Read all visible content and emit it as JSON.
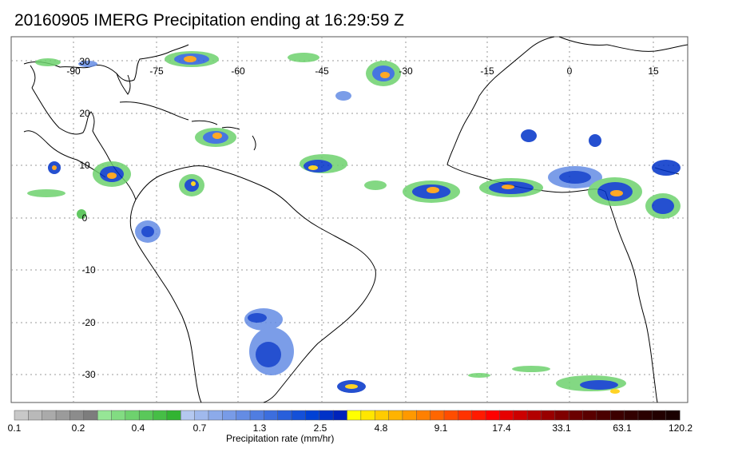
{
  "title": "20160905 IMERG Precipitation ending at 16:29:59 Z",
  "map": {
    "lon_labels": [
      "-90",
      "-75",
      "-60",
      "-45",
      "-30",
      "-15",
      "0",
      "15"
    ],
    "lat_labels": [
      "30",
      "20",
      "10",
      "0",
      "-10",
      "-20",
      "-30"
    ]
  },
  "colorbar": {
    "title": "Precipitation rate (mm/hr)",
    "tick_labels": [
      "0.1",
      "0.2",
      "0.4",
      "0.7",
      "1.3",
      "2.5",
      "4.8",
      "9.1",
      "17.4",
      "33.1",
      "63.1",
      "120.2"
    ],
    "colors": [
      "#c8c8c8",
      "#b9b9b9",
      "#aaaaaa",
      "#9b9b9b",
      "#8c8c8c",
      "#7d7d7d",
      "#96e696",
      "#82dc82",
      "#6ed26e",
      "#5ac85a",
      "#46be46",
      "#32b432",
      "#b4c8f0",
      "#a0b9ed",
      "#8caaea",
      "#789be7",
      "#648ce4",
      "#507de1",
      "#3c6ede",
      "#285fdb",
      "#1450d8",
      "#0041d5",
      "#0032c8",
      "#0023bb",
      "#ffff00",
      "#ffe600",
      "#ffcc00",
      "#ffb300",
      "#ff9900",
      "#ff8000",
      "#ff6600",
      "#ff4d00",
      "#ff3300",
      "#ff1a00",
      "#ff0000",
      "#e60000",
      "#cc0000",
      "#b30000",
      "#990000",
      "#800000",
      "#6b0000",
      "#5a0000",
      "#4b0000",
      "#3c0000",
      "#320000",
      "#2a0000",
      "#220000",
      "#1a0000"
    ]
  }
}
